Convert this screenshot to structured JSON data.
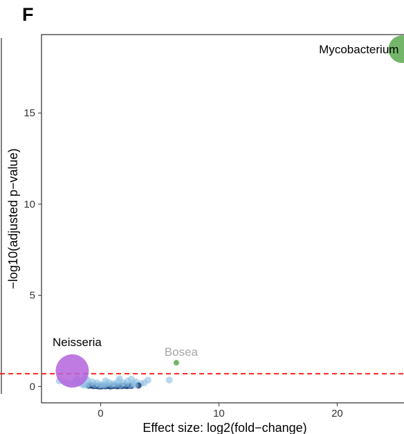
{
  "panel_label": "F",
  "chart_data": {
    "type": "scatter",
    "title": "",
    "xlabel": "Effect size: log2(fold−change)",
    "ylabel": "−log10(adjusted p−value)",
    "xlim": [
      -5,
      26
    ],
    "ylim": [
      -0.9,
      19.3
    ],
    "x_ticks": [
      0,
      10,
      20
    ],
    "y_ticks": [
      0,
      5,
      10,
      15
    ],
    "grid": false,
    "threshold": {
      "y": 0.7,
      "color": "#ff2020",
      "style": "dashed"
    },
    "colors": {
      "highlight_up": "#5aa84f",
      "highlight_down": "#b464dc",
      "cluster_dark": "#08306b",
      "cluster_light": "#8ec0e2",
      "muted_label": "#a6a6a6"
    },
    "labeled_points": [
      {
        "name": "Mycobacterium",
        "x": 25.5,
        "y": 18.5,
        "color": "#5aa84f",
        "size": 20,
        "label_color": "#000000"
      },
      {
        "name": "Neisseria",
        "x": -2.4,
        "y": 0.85,
        "color": "#b464dc",
        "size": 24,
        "label_color": "#000000"
      },
      {
        "name": "Bosea",
        "x": 6.4,
        "y": 1.3,
        "color": "#5aa84f",
        "size": 4,
        "label_color": "#a6a6a6"
      }
    ],
    "cluster_points": [
      {
        "x": 0.0,
        "y": 0.0
      },
      {
        "x": 0.2,
        "y": 0.02
      },
      {
        "x": 0.4,
        "y": 0.01
      },
      {
        "x": 0.6,
        "y": 0.03
      },
      {
        "x": 0.8,
        "y": 0.0
      },
      {
        "x": 1.0,
        "y": 0.02
      },
      {
        "x": 1.2,
        "y": 0.04
      },
      {
        "x": 1.4,
        "y": 0.01
      },
      {
        "x": 1.6,
        "y": 0.03
      },
      {
        "x": 1.8,
        "y": 0.02
      },
      {
        "x": 2.0,
        "y": 0.05
      },
      {
        "x": 2.2,
        "y": 0.02
      },
      {
        "x": 2.4,
        "y": 0.04
      },
      {
        "x": 2.6,
        "y": 0.03
      },
      {
        "x": -0.2,
        "y": 0.01
      },
      {
        "x": -0.4,
        "y": 0.03
      },
      {
        "x": -0.6,
        "y": 0.02
      },
      {
        "x": -0.8,
        "y": 0.05
      },
      {
        "x": -1.0,
        "y": 0.04
      },
      {
        "x": -1.2,
        "y": 0.06
      },
      {
        "x": -0.1,
        "y": 0.08
      },
      {
        "x": 0.1,
        "y": 0.1
      },
      {
        "x": 0.3,
        "y": 0.07
      },
      {
        "x": 0.5,
        "y": 0.12
      },
      {
        "x": 0.9,
        "y": 0.09
      },
      {
        "x": 1.3,
        "y": 0.11
      },
      {
        "x": 1.7,
        "y": 0.08
      },
      {
        "x": 2.1,
        "y": 0.13
      },
      {
        "x": -0.5,
        "y": 0.1
      },
      {
        "x": -0.9,
        "y": 0.14
      },
      {
        "x": 1.1,
        "y": 0.15
      },
      {
        "x": 2.5,
        "y": 0.1
      },
      {
        "x": -1.4,
        "y": 0.12
      },
      {
        "x": -1.8,
        "y": 0.18
      },
      {
        "x": -2.2,
        "y": 0.2
      },
      {
        "x": -2.6,
        "y": 0.15
      },
      {
        "x": -3.0,
        "y": 0.22
      },
      {
        "x": -1.6,
        "y": 0.3
      },
      {
        "x": -1.1,
        "y": 0.35
      },
      {
        "x": -0.7,
        "y": 0.25
      },
      {
        "x": 0.7,
        "y": 0.22
      },
      {
        "x": 1.5,
        "y": 0.28
      },
      {
        "x": 1.9,
        "y": 0.2
      },
      {
        "x": 2.3,
        "y": 0.3
      },
      {
        "x": 2.8,
        "y": 0.18
      },
      {
        "x": 3.0,
        "y": 0.25
      },
      {
        "x": 3.4,
        "y": 0.15
      },
      {
        "x": 3.7,
        "y": 0.2
      },
      {
        "x": 4.0,
        "y": 0.35
      },
      {
        "x": -3.5,
        "y": 0.3
      },
      {
        "x": -2.0,
        "y": 0.4
      },
      {
        "x": -1.3,
        "y": 0.45
      },
      {
        "x": 2.6,
        "y": 0.4
      },
      {
        "x": 1.6,
        "y": 0.42
      },
      {
        "x": 0.4,
        "y": 0.3
      },
      {
        "x": 5.8,
        "y": 0.35
      },
      {
        "x": -0.3,
        "y": 0.2
      },
      {
        "x": 3.2,
        "y": 0.05
      },
      {
        "x": -1.5,
        "y": 0.08
      },
      {
        "x": 2.9,
        "y": 0.08
      }
    ]
  }
}
